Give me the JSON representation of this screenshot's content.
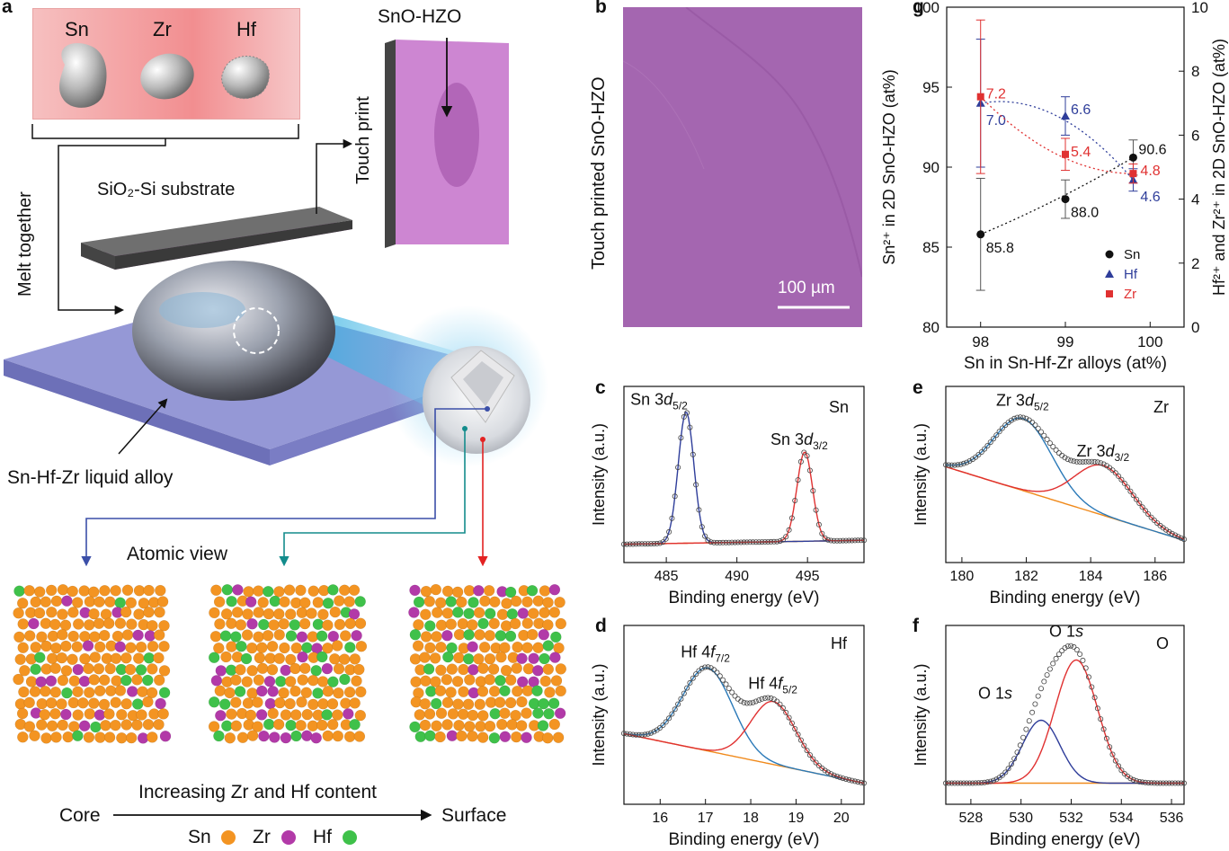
{
  "panel_labels": {
    "a": "a",
    "b": "b",
    "c": "c",
    "d": "d",
    "e": "e",
    "f": "f",
    "g": "g"
  },
  "panel_a": {
    "metals": [
      "Sn",
      "Zr",
      "Hf"
    ],
    "product_label": "SnO-HZO",
    "touch_print": "Touch print",
    "substrate": "SiO₂-Si substrate",
    "melt_together": "Melt together",
    "alloy_label": "Sn-Hf-Zr liquid alloy",
    "atomic_view": "Atomic view",
    "gradient_label": "Increasing Zr and Hf content",
    "core": "Core",
    "surface": "Surface",
    "legend": [
      {
        "label": "Sn",
        "color": "#f39422"
      },
      {
        "label": "Zr",
        "color": "#b23aa8"
      },
      {
        "label": "Hf",
        "color": "#3fc14a"
      }
    ],
    "colors": {
      "blue_arrow": "#3b4fa8",
      "teal_arrow": "#138c8c",
      "red_arrow": "#e32222",
      "substrate_top": "#b46fb8",
      "stage": "#8c8fd1"
    }
  },
  "panel_b": {
    "side_label": "Touch printed SnO-HZO",
    "scale_bar": "100 µm",
    "color": "#a466b0"
  },
  "chart_data": [
    {
      "id": "g",
      "type": "scatter",
      "xlabel": "Sn in Sn-Hf-Zr alloys (at%)",
      "ylabel_left": "Sn²⁺ in 2D SnO-HZO (at%)",
      "ylabel_right": "Hf²⁺ and Zr²⁺ in 2D SnO-HZO (at%)",
      "xlim": [
        97.6,
        100.4
      ],
      "xticks": [
        98,
        99,
        100
      ],
      "ylim_left": [
        80,
        100
      ],
      "yticks_left": [
        80,
        85,
        90,
        95,
        100
      ],
      "ylim_right": [
        0,
        10
      ],
      "yticks_right": [
        0,
        2,
        4,
        6,
        8,
        10
      ],
      "series": [
        {
          "name": "Sn",
          "axis": "left",
          "color": "#111111",
          "marker": "circle",
          "x": [
            98,
            99,
            99.8
          ],
          "y": [
            85.8,
            88.0,
            90.6
          ],
          "err": [
            3.5,
            1.2,
            1.1
          ],
          "labels": [
            "85.8",
            "88.0",
            "90.6"
          ]
        },
        {
          "name": "Hf",
          "axis": "right",
          "color": "#2e3d9a",
          "marker": "triangle",
          "x": [
            98,
            99,
            99.8
          ],
          "y": [
            7.0,
            6.6,
            4.6
          ],
          "err": [
            2.0,
            0.6,
            0.35
          ],
          "labels": [
            "7.0",
            "6.6",
            "4.6"
          ]
        },
        {
          "name": "Zr",
          "axis": "right",
          "color": "#e03131",
          "marker": "square",
          "x": [
            98,
            99,
            99.8
          ],
          "y": [
            7.2,
            5.4,
            4.8
          ],
          "err": [
            2.4,
            0.5,
            0.3
          ],
          "labels": [
            "7.2",
            "5.4",
            "4.8"
          ]
        }
      ],
      "legend_position": "lower-right"
    },
    {
      "id": "c",
      "type": "line",
      "xlabel": "Binding energy (eV)",
      "ylabel": "Intensity (a.u.)",
      "element": "Sn",
      "xlim": [
        482,
        499
      ],
      "xticks": [
        485,
        490,
        495
      ],
      "peaks": [
        {
          "label": "Sn 3d5/2",
          "main": "Sn 3",
          "sub": "d",
          "subscript": "5/2",
          "center": 486.4,
          "height": 1.0,
          "width": 0.55,
          "color": "#2e3d9a"
        },
        {
          "label": "Sn 3d3/2",
          "main": "Sn 3",
          "sub": "d",
          "subscript": "3/2",
          "center": 494.8,
          "height": 0.68,
          "width": 0.55,
          "color": "#e03131"
        }
      ],
      "background_color": "#f08a1c"
    },
    {
      "id": "d",
      "type": "line",
      "xlabel": "Binding energy (eV)",
      "ylabel": "Intensity (a.u.)",
      "element": "Hf",
      "xlim": [
        15.2,
        20.5
      ],
      "xticks": [
        16,
        17,
        18,
        19,
        20
      ],
      "peaks": [
        {
          "label": "Hf 4f7/2",
          "main": "Hf 4",
          "sub": "f",
          "subscript": "7/2",
          "center": 17.05,
          "height": 0.62,
          "width": 0.55,
          "color": "#2a79b8"
        },
        {
          "label": "Hf 4f5/2",
          "main": "Hf 4",
          "sub": "f",
          "subscript": "5/2",
          "center": 18.5,
          "height": 0.47,
          "width": 0.5,
          "color": "#e03131"
        }
      ],
      "background_color": "#f08a1c"
    },
    {
      "id": "e",
      "type": "line",
      "xlabel": "Binding energy (eV)",
      "ylabel": "Intensity (a.u.)",
      "element": "Zr",
      "xlim": [
        179.5,
        186.9
      ],
      "xticks": [
        180,
        182,
        184,
        186
      ],
      "peaks": [
        {
          "label": "Zr 3d5/2",
          "main": "Zr 3",
          "sub": "d",
          "subscript": "5/2",
          "center": 181.9,
          "height": 0.55,
          "width": 0.9,
          "color": "#2a79b8"
        },
        {
          "label": "Zr 3d3/2",
          "main": "Zr 3",
          "sub": "d",
          "subscript": "3/2",
          "center": 184.4,
          "height": 0.38,
          "width": 0.9,
          "color": "#e03131"
        }
      ],
      "background_color": "#f08a1c"
    },
    {
      "id": "f",
      "type": "line",
      "xlabel": "Binding energy (eV)",
      "ylabel": "Intensity (a.u.)",
      "element": "O",
      "xlim": [
        527,
        536.5
      ],
      "xticks": [
        528,
        530,
        532,
        534,
        536
      ],
      "peaks": [
        {
          "label": "O 1s",
          "main": "O 1",
          "sub": "s",
          "subscript": "",
          "center": 530.8,
          "height": 0.47,
          "width": 0.75,
          "color": "#2e3d9a"
        },
        {
          "label": "O 1s",
          "main": "O 1",
          "sub": "s",
          "subscript": "",
          "center": 532.2,
          "height": 0.92,
          "width": 0.85,
          "color": "#e03131"
        }
      ],
      "background_color": "#f08a1c"
    }
  ]
}
